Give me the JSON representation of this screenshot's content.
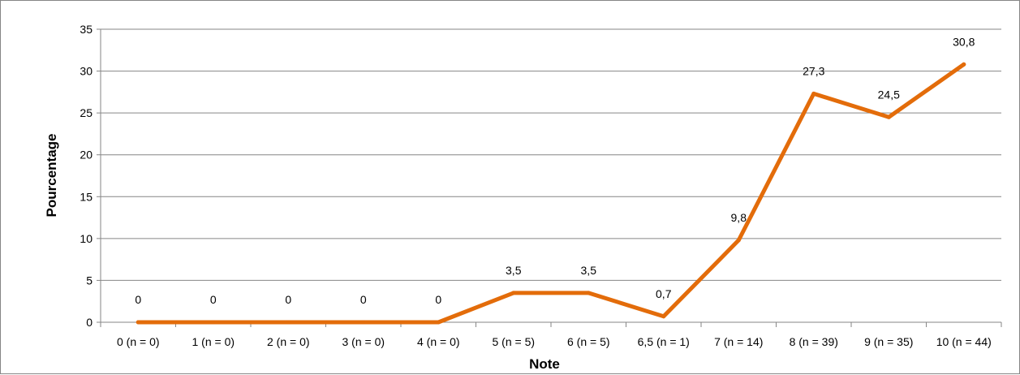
{
  "chart_data": {
    "type": "line",
    "title": "",
    "xlabel": "Note",
    "ylabel": "Pourcentage",
    "categories": [
      "0 (n = 0)",
      "1 (n = 0)",
      "2 (n = 0)",
      "3 (n = 0)",
      "4 (n = 0)",
      "5 (n = 5)",
      "6 (n = 5)",
      "6,5 (n = 1)",
      "7 (n = 14)",
      "8 (n = 39)",
      "9 (n = 35)",
      "10 (n = 44)"
    ],
    "values": [
      0,
      0,
      0,
      0,
      0,
      3.5,
      3.5,
      0.7,
      9.8,
      27.3,
      24.5,
      30.8
    ],
    "data_labels": [
      "0",
      "0",
      "0",
      "0",
      "0",
      "3,5",
      "3,5",
      "0,7",
      "9,8",
      "27,3",
      "24,5",
      "30,8"
    ],
    "ylim": [
      0,
      35
    ],
    "yticks": [
      0,
      5,
      10,
      15,
      20,
      25,
      30,
      35
    ],
    "ytick_labels": [
      "0",
      "5",
      "10",
      "15",
      "20",
      "25",
      "30",
      "35"
    ],
    "grid": true,
    "legend": "none",
    "line_color": "#E36C0A"
  }
}
